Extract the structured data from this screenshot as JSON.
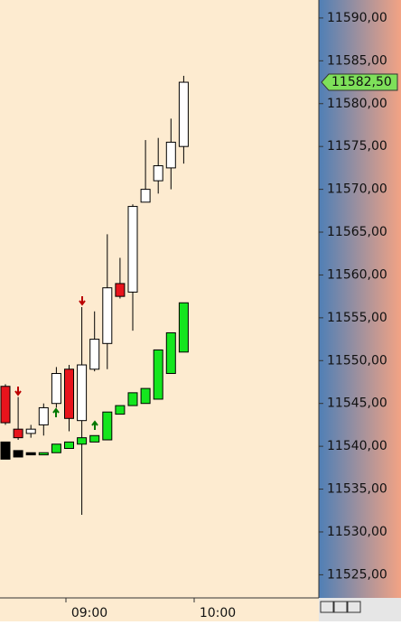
{
  "chart_data": {
    "type": "candlestick",
    "series": [
      {
        "name": "price",
        "up_color": "#ffffff",
        "down_color": "#e8141c",
        "open": [
          11547.0,
          11542.0,
          11541.5,
          11542.5,
          11545.0,
          11549.0,
          11543.0,
          11549.0,
          11552.0,
          11559.0,
          11558.0,
          11568.5,
          11571.0,
          11572.5,
          11575.0
        ],
        "high": [
          11547.25,
          11545.75,
          11542.5,
          11545.0,
          11549.25,
          11549.5,
          11556.25,
          11555.75,
          11564.75,
          11562.0,
          11568.25,
          11575.75,
          11576.0,
          11578.25,
          11583.25
        ],
        "low": [
          11542.5,
          11540.75,
          11541.0,
          11541.25,
          11544.5,
          11541.75,
          11532.0,
          11548.75,
          11549.0,
          11557.25,
          11553.5,
          11568.5,
          11569.5,
          11570.0,
          11573.0
        ],
        "close": [
          11542.75,
          11541.0,
          11542.0,
          11544.5,
          11548.5,
          11543.25,
          11549.5,
          11552.5,
          11558.5,
          11557.5,
          11568.0,
          11570.0,
          11572.75,
          11575.5,
          11582.5
        ]
      },
      {
        "name": "smoothed",
        "up_color": "#14e61e",
        "down_color": "#000000",
        "open": [
          11540.5,
          11539.5,
          11539.25,
          11539.0,
          11539.25,
          11539.75,
          11540.25,
          11540.5,
          11540.75,
          11543.75,
          11544.75,
          11545.0,
          11545.5,
          11548.5,
          11551.0
        ],
        "close": [
          11538.5,
          11538.75,
          11539.0,
          11539.25,
          11540.25,
          11540.5,
          11541.0,
          11541.25,
          11544.0,
          11544.75,
          11546.25,
          11546.75,
          11551.25,
          11553.25,
          11556.75
        ]
      }
    ],
    "ylim": [
      11522.3,
      11592.1
    ],
    "yticks": [
      {
        "value": 11590,
        "label": "11590,00"
      },
      {
        "value": 11585,
        "label": "11585,00"
      },
      {
        "value": 11580,
        "label": "11580,00"
      },
      {
        "value": 11575,
        "label": "11575,00"
      },
      {
        "value": 11570,
        "label": "11570,00"
      },
      {
        "value": 11565,
        "label": "11565,00"
      },
      {
        "value": 11560,
        "label": "11560,00"
      },
      {
        "value": 11555,
        "label": "11555,00"
      },
      {
        "value": 11550,
        "label": "11550,00"
      },
      {
        "value": 11545,
        "label": "11545,00"
      },
      {
        "value": 11540,
        "label": "11540,00"
      },
      {
        "value": 11535,
        "label": "11535,00"
      },
      {
        "value": 11530,
        "label": "11530,00"
      },
      {
        "value": 11525,
        "label": "11525,00"
      }
    ],
    "last_price": {
      "value": 11582.5,
      "label": "11582,50"
    },
    "xticks": [
      "09:00",
      "10:00"
    ]
  }
}
